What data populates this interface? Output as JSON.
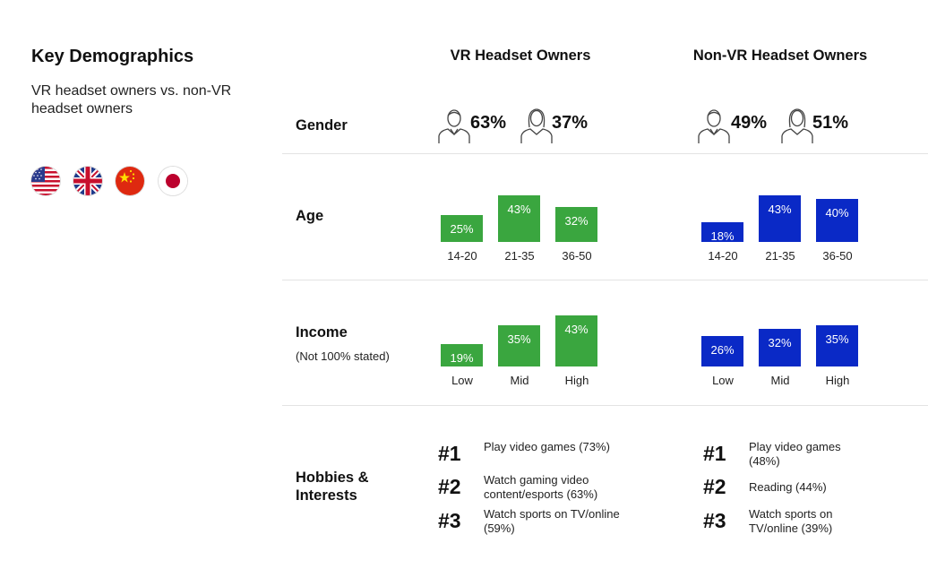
{
  "header": {
    "title": "Key Demographics",
    "subtitle": "VR headset owners vs. non-VR headset owners"
  },
  "flags": [
    {
      "name": "us-flag-icon",
      "country": "USA"
    },
    {
      "name": "uk-flag-icon",
      "country": "UK"
    },
    {
      "name": "china-flag-icon",
      "country": "China"
    },
    {
      "name": "japan-flag-icon",
      "country": "Japan"
    }
  ],
  "columns": {
    "vr": "VR Headset Owners",
    "nonvr": "Non-VR Headset Owners"
  },
  "rows": {
    "gender": "Gender",
    "age": "Age",
    "income": "Income",
    "income_note": "(Not 100% stated)",
    "hobbies": "Hobbies & Interests"
  },
  "colors": {
    "vr_bar": "#3aa63f",
    "nonvr_bar": "#0a29c6"
  },
  "chart_data": [
    {
      "type": "table",
      "title": "Gender",
      "categories": [
        "Male",
        "Female"
      ],
      "series": [
        {
          "name": "VR Headset Owners",
          "values": [
            63,
            37
          ],
          "labels": [
            "63%",
            "37%"
          ]
        },
        {
          "name": "Non-VR Headset Owners",
          "values": [
            49,
            51
          ],
          "labels": [
            "49%",
            "51%"
          ]
        }
      ]
    },
    {
      "type": "bar",
      "title": "Age",
      "categories": [
        "14-20",
        "21-35",
        "36-50"
      ],
      "series": [
        {
          "name": "VR Headset Owners",
          "values": [
            25,
            43,
            32
          ],
          "labels": [
            "25%",
            "43%",
            "32%"
          ]
        },
        {
          "name": "Non-VR Headset Owners",
          "values": [
            18,
            43,
            40
          ],
          "labels": [
            "18%",
            "43%",
            "40%"
          ]
        }
      ],
      "ylim": [
        0,
        43
      ]
    },
    {
      "type": "bar",
      "title": "Income",
      "subtitle": "(Not 100% stated)",
      "categories": [
        "Low",
        "Mid",
        "High"
      ],
      "series": [
        {
          "name": "VR Headset Owners",
          "values": [
            19,
            35,
            43
          ],
          "labels": [
            "19%",
            "35%",
            "43%"
          ]
        },
        {
          "name": "Non-VR Headset Owners",
          "values": [
            26,
            32,
            35
          ],
          "labels": [
            "26%",
            "32%",
            "35%"
          ]
        }
      ],
      "ylim": [
        0,
        43
      ]
    },
    {
      "type": "table",
      "title": "Hobbies & Interests",
      "series": [
        {
          "name": "VR Headset Owners",
          "ranks": [
            "#1",
            "#2",
            "#3"
          ],
          "items": [
            "Play video games (73%)",
            "Watch gaming video content/esports (63%)",
            "Watch sports on TV/online (59%)"
          ],
          "values": [
            73,
            63,
            59
          ]
        },
        {
          "name": "Non-VR Headset Owners",
          "ranks": [
            "#1",
            "#2",
            "#3"
          ],
          "items": [
            "Play video games (48%)",
            "Reading (44%)",
            "Watch sports on TV/online (39%)"
          ],
          "values": [
            48,
            44,
            39
          ]
        }
      ]
    }
  ]
}
